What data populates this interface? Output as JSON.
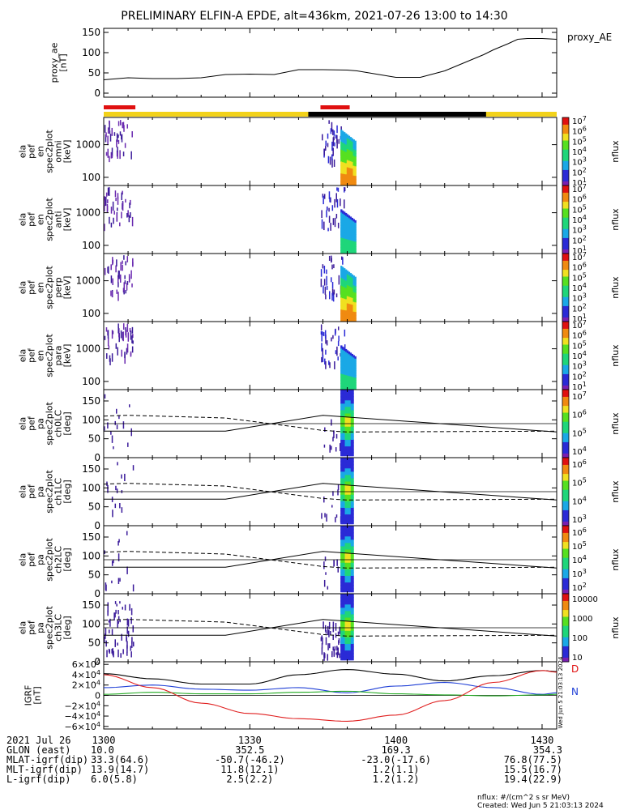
{
  "title": "PRELIMINARY ELFIN-A EPDE, alt=436km, 2021-07-26 13:00 to 14:30",
  "chart_data": [
    {
      "type": "line",
      "name": "proxy_ae",
      "ylabel": [
        "proxy_ae",
        "[nT]"
      ],
      "legend": "proxy_AE",
      "ylim": [
        -10,
        160
      ],
      "yticks": [
        "150",
        "100",
        "50",
        "0"
      ],
      "x_minutes": [
        0,
        5,
        10,
        15,
        20,
        25,
        30,
        35,
        40,
        45,
        50,
        52,
        55,
        60,
        65,
        70,
        75,
        78,
        80,
        83,
        85,
        87,
        90,
        93
      ],
      "values": [
        33,
        38,
        36,
        36,
        38,
        46,
        47,
        46,
        58,
        58,
        57,
        55,
        49,
        39,
        39,
        55,
        80,
        95,
        107,
        122,
        133,
        135,
        135,
        133
      ]
    },
    {
      "type": "heatmap",
      "name": "spec2plot-omni",
      "ylabel": [
        "ela",
        "pef",
        "en",
        "spec2plot",
        "omni",
        "[keV]"
      ],
      "yticks": [
        "1000",
        "100"
      ],
      "zlabel": "nflux",
      "ztick_exponents": [
        "1",
        "2",
        "3",
        "4",
        "5",
        "6",
        "7"
      ]
    },
    {
      "type": "heatmap",
      "name": "spec2plot-anti",
      "ylabel": [
        "ela",
        "pef",
        "en",
        "spec2plot",
        "anti",
        "[keV]"
      ],
      "yticks": [
        "1000",
        "100"
      ],
      "zlabel": "nflux",
      "ztick_exponents": [
        "1",
        "2",
        "3",
        "4",
        "5",
        "6",
        "7"
      ]
    },
    {
      "type": "heatmap",
      "name": "spec2plot-perp",
      "ylabel": [
        "ela",
        "pef",
        "en",
        "spec2plot",
        "perp",
        "[keV]"
      ],
      "yticks": [
        "1000",
        "100"
      ],
      "zlabel": "nflux",
      "ztick_exponents": [
        "1",
        "2",
        "3",
        "4",
        "5",
        "6",
        "7"
      ]
    },
    {
      "type": "heatmap",
      "name": "spec2plot-para",
      "ylabel": [
        "ela",
        "pef",
        "en",
        "spec2plot",
        "para",
        "[keV]"
      ],
      "yticks": [
        "1000",
        "100"
      ],
      "zlabel": "nflux",
      "ztick_exponents": [
        "1",
        "2",
        "3",
        "4",
        "5",
        "6",
        "7"
      ]
    },
    {
      "type": "heatmap",
      "name": "spec2plot-ch0LC",
      "ylabel": [
        "ela",
        "pef",
        "pa",
        "spec2plot",
        "ch0LC",
        "[deg]"
      ],
      "yticks": [
        "150",
        "100",
        "50",
        "0"
      ],
      "ylim": [
        0,
        180
      ],
      "zlabel": "nflux",
      "ztick_exponents": [
        "4",
        "5",
        "6",
        "7"
      ]
    },
    {
      "type": "heatmap",
      "name": "spec2plot-ch1LC",
      "ylabel": [
        "ela",
        "pef",
        "pa",
        "spec2plot",
        "ch1LC",
        "[deg]"
      ],
      "yticks": [
        "150",
        "100",
        "50",
        "0"
      ],
      "ylim": [
        0,
        180
      ],
      "zlabel": "nflux",
      "ztick_exponents": [
        "3",
        "4",
        "5",
        "6"
      ]
    },
    {
      "type": "heatmap",
      "name": "spec2plot-ch2LC",
      "ylabel": [
        "ela",
        "pef",
        "pa",
        "spec2plot",
        "ch2LC",
        "[deg]"
      ],
      "yticks": [
        "150",
        "100",
        "50",
        "0"
      ],
      "ylim": [
        0,
        180
      ],
      "zlabel": "nflux",
      "ztick_exponents": [
        "2",
        "3",
        "4",
        "5",
        "6"
      ]
    },
    {
      "type": "heatmap",
      "name": "spec2plot-ch3LC",
      "ylabel": [
        "ela",
        "pef",
        "pa",
        "spec2plot",
        "ch3LC",
        "[deg]"
      ],
      "yticks": [
        "150",
        "100",
        "50",
        "0"
      ],
      "ylim": [
        0,
        180
      ],
      "zlabel": "nflux",
      "zticks": [
        "10000",
        "1000",
        "100",
        "10"
      ]
    },
    {
      "type": "line",
      "name": "IGRF",
      "ylabel": [
        "IGRF",
        "[nT]"
      ],
      "ylim": [
        -65000,
        65000
      ],
      "ytick_mantissas": [
        "6×10",
        "4×10",
        "2×10",
        "0",
        "−2×10",
        "−4×10",
        "−6×10"
      ],
      "ytick_exponent": "4",
      "legend": [
        "N",
        "D"
      ],
      "side_note": "Wed Jun 5 21:03:13 2024",
      "x_minutes": [
        0,
        10,
        20,
        30,
        40,
        50,
        60,
        70,
        80,
        90,
        93
      ],
      "series": [
        {
          "name": "black",
          "color": "#000000",
          "values": [
            42000,
            32000,
            22000,
            22000,
            40000,
            50000,
            41000,
            28000,
            38000,
            48000,
            46000
          ]
        },
        {
          "name": "blue",
          "color": "#1f3fd6",
          "values": [
            15000,
            20000,
            12000,
            10000,
            15000,
            5000,
            18000,
            25000,
            15000,
            2000,
            5000
          ]
        },
        {
          "name": "green",
          "color": "#22aa22",
          "values": [
            2000,
            6000,
            3000,
            3000,
            6000,
            8000,
            3000,
            1000,
            -1000,
            1000,
            2000
          ]
        },
        {
          "name": "red",
          "color": "#e02020",
          "values": [
            40000,
            15000,
            -15000,
            -35000,
            -45000,
            -50000,
            -38000,
            -10000,
            25000,
            48000,
            45000
          ]
        }
      ]
    }
  ],
  "time_ticks": [
    "1300",
    "1330",
    "1400",
    "1430"
  ],
  "footer": {
    "rows": [
      {
        "label": "2021 Jul 26",
        "values": [
          "1300",
          "",
          "",
          ""
        ]
      },
      {
        "label": "GLON (east)",
        "values": [
          "10.0",
          "352.5",
          "169.3",
          "354.3"
        ]
      },
      {
        "label": "MLAT-igrf(dip)",
        "values": [
          "33.3(64.6)",
          "-50.7(-46.2)",
          "-23.0(-17.6)",
          "76.8(77.5)"
        ]
      },
      {
        "label": "MLT-igrf(dip)",
        "values": "13.9(14.7)|11.8(12.1)|1.2(1.1)|15.5(16.7)"
      },
      {
        "label": "L-igrf(dip)",
        "values": [
          "6.0(5.8)",
          "2.5(2.2)",
          "1.2(1.2)",
          "19.4(22.9)"
        ]
      }
    ],
    "units_note": "nflux: #/(cm^2 s sr MeV)",
    "created": "Created: Wed Jun  5 21:03:13 2024"
  }
}
